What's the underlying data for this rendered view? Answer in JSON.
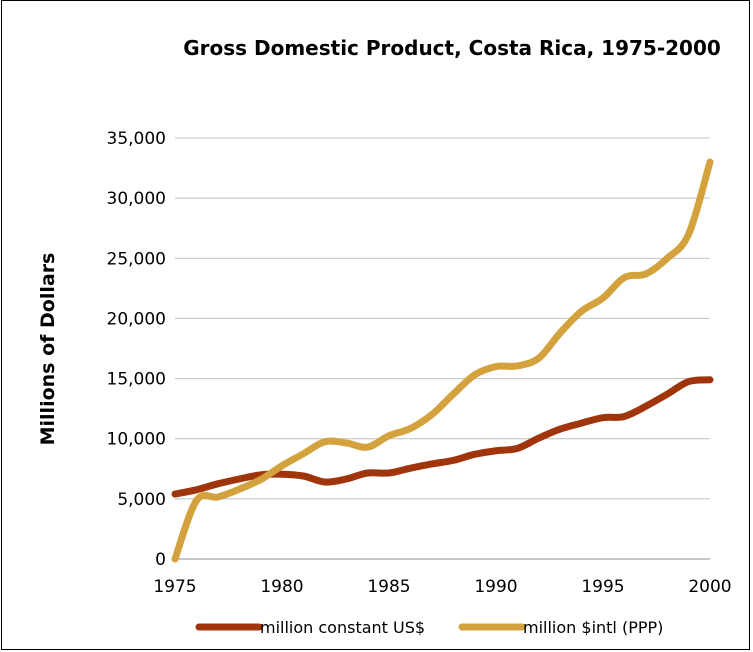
{
  "chart_data": {
    "type": "line",
    "title": "Gross Domestic Product, Costa Rica, 1975-2000",
    "xlabel": "",
    "ylabel": "Millions of Dollars",
    "xlim": [
      1975,
      2000
    ],
    "ylim": [
      0,
      35000
    ],
    "x_ticks": [
      "1975",
      "1980",
      "1985",
      "1990",
      "1995",
      "2000"
    ],
    "y_ticks": [
      "0",
      "5,000",
      "10,000",
      "15,000",
      "20,000",
      "25,000",
      "30,000",
      "35,000"
    ],
    "grid": true,
    "legend_position": "bottom",
    "x": [
      1975,
      1976,
      1977,
      1978,
      1979,
      1980,
      1981,
      1982,
      1983,
      1984,
      1985,
      1986,
      1987,
      1988,
      1989,
      1990,
      1991,
      1992,
      1993,
      1994,
      1995,
      1996,
      1997,
      1998,
      1999,
      2000
    ],
    "series": [
      {
        "name": "million constant US$",
        "color": "#a0350c",
        "values": [
          5400,
          5750,
          6250,
          6650,
          7000,
          7050,
          6900,
          6400,
          6650,
          7150,
          7150,
          7550,
          7900,
          8200,
          8700,
          9000,
          9200,
          10050,
          10800,
          11300,
          11750,
          11850,
          12700,
          13700,
          14750,
          14900
        ]
      },
      {
        "name": "million $intl (PPP)",
        "color": "#d4a23c",
        "values": [
          0,
          4850,
          5150,
          5800,
          6600,
          7750,
          8750,
          9750,
          9650,
          9300,
          10250,
          10850,
          12000,
          13700,
          15300,
          16000,
          16050,
          16700,
          18800,
          20600,
          21700,
          23400,
          23700,
          25000,
          27000,
          33000
        ]
      }
    ]
  }
}
